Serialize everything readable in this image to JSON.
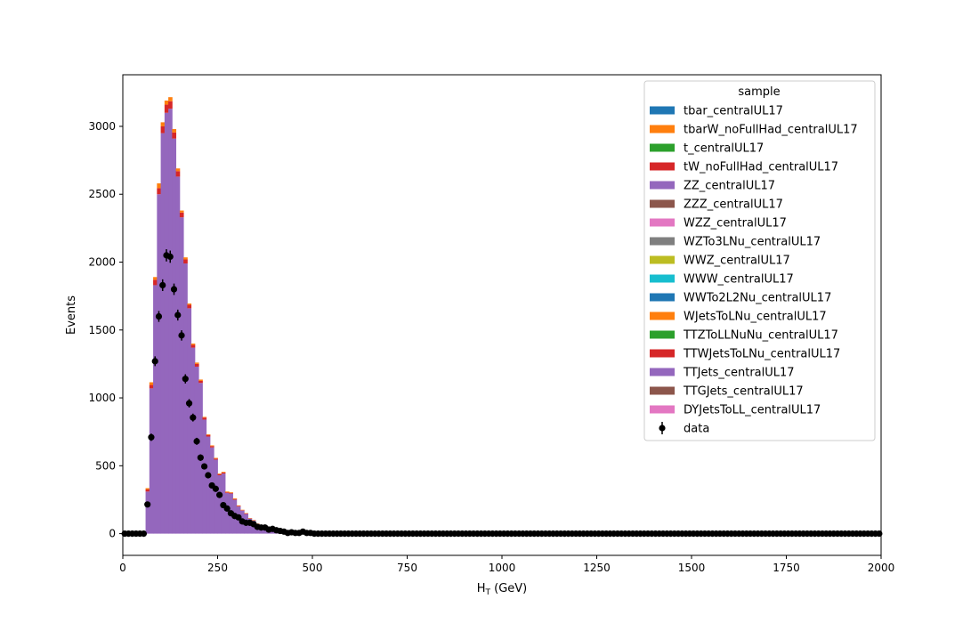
{
  "chart_data": {
    "type": "bar",
    "stacked": true,
    "xlabel_main": "H",
    "xlabel_sub": "T",
    "xlabel_unit": " (GeV)",
    "ylabel": "Events",
    "xlim": [
      0,
      2000
    ],
    "ylim": [
      -160,
      3380
    ],
    "bin_width": 10,
    "x_ticks": [
      0,
      250,
      500,
      750,
      1000,
      1250,
      1500,
      1750,
      2000
    ],
    "y_ticks": [
      0,
      500,
      1000,
      1500,
      2000,
      2500,
      3000
    ],
    "legend": {
      "title": "sample",
      "placement": "upper right",
      "entries": [
        {
          "name": "tbar_centralUL17",
          "color": "#1f77b4"
        },
        {
          "name": "tbarW_noFullHad_centralUL17",
          "color": "#ff7f0e"
        },
        {
          "name": "t_centralUL17",
          "color": "#2ca02c"
        },
        {
          "name": "tW_noFullHad_centralUL17",
          "color": "#d62728"
        },
        {
          "name": "ZZ_centralUL17",
          "color": "#9467bd"
        },
        {
          "name": "ZZZ_centralUL17",
          "color": "#8c564b"
        },
        {
          "name": "WZZ_centralUL17",
          "color": "#e377c2"
        },
        {
          "name": "WZTo3LNu_centralUL17",
          "color": "#7f7f7f"
        },
        {
          "name": "WWZ_centralUL17",
          "color": "#bcbd22"
        },
        {
          "name": "WWW_centralUL17",
          "color": "#17becf"
        },
        {
          "name": "WWTo2L2Nu_centralUL17",
          "color": "#1f77b4"
        },
        {
          "name": "WJetsToLNu_centralUL17",
          "color": "#ff7f0e"
        },
        {
          "name": "TTZToLLNuNu_centralUL17",
          "color": "#2ca02c"
        },
        {
          "name": "TTWJetsToLNu_centralUL17",
          "color": "#d62728"
        },
        {
          "name": "TTJets_centralUL17",
          "color": "#9467bd"
        },
        {
          "name": "TTGJets_centralUL17",
          "color": "#8c564b"
        },
        {
          "name": "DYJetsToLL_centralUL17",
          "color": "#e377c2"
        }
      ],
      "data_label": "data"
    },
    "mc_bins": [
      {
        "x0": 60,
        "ttjets": 310,
        "red": 15,
        "orange": 10
      },
      {
        "x0": 70,
        "ttjets": 1070,
        "red": 25,
        "orange": 20
      },
      {
        "x0": 80,
        "ttjets": 1830,
        "red": 40,
        "orange": 20
      },
      {
        "x0": 90,
        "ttjets": 2500,
        "red": 45,
        "orange": 35
      },
      {
        "x0": 100,
        "ttjets": 2950,
        "red": 50,
        "orange": 30
      },
      {
        "x0": 110,
        "ttjets": 3100,
        "red": 60,
        "orange": 30
      },
      {
        "x0": 120,
        "ttjets": 3130,
        "red": 55,
        "orange": 30
      },
      {
        "x0": 130,
        "ttjets": 2910,
        "red": 45,
        "orange": 25
      },
      {
        "x0": 140,
        "ttjets": 2630,
        "red": 40,
        "orange": 20
      },
      {
        "x0": 150,
        "ttjets": 2330,
        "red": 35,
        "orange": 15
      },
      {
        "x0": 160,
        "ttjets": 1990,
        "red": 30,
        "orange": 15
      },
      {
        "x0": 170,
        "ttjets": 1660,
        "red": 25,
        "orange": 10
      },
      {
        "x0": 180,
        "ttjets": 1370,
        "red": 20,
        "orange": 10
      },
      {
        "x0": 190,
        "ttjets": 1230,
        "red": 20,
        "orange": 10
      },
      {
        "x0": 200,
        "ttjets": 1110,
        "red": 15,
        "orange": 10
      },
      {
        "x0": 210,
        "ttjets": 840,
        "red": 15,
        "orange": 5
      },
      {
        "x0": 220,
        "ttjets": 715,
        "red": 12,
        "orange": 5
      },
      {
        "x0": 230,
        "ttjets": 635,
        "red": 10,
        "orange": 5
      },
      {
        "x0": 240,
        "ttjets": 545,
        "red": 8,
        "orange": 5
      },
      {
        "x0": 250,
        "ttjets": 430,
        "red": 8,
        "orange": 5
      },
      {
        "x0": 260,
        "ttjets": 442,
        "red": 8,
        "orange": 5
      },
      {
        "x0": 270,
        "ttjets": 300,
        "red": 5,
        "orange": 5
      },
      {
        "x0": 280,
        "ttjets": 295,
        "red": 5,
        "orange": 5
      },
      {
        "x0": 290,
        "ttjets": 250,
        "red": 5,
        "orange": 5
      },
      {
        "x0": 300,
        "ttjets": 200,
        "red": 5,
        "orange": 3
      },
      {
        "x0": 310,
        "ttjets": 170,
        "red": 3,
        "orange": 3
      },
      {
        "x0": 320,
        "ttjets": 145,
        "red": 3,
        "orange": 3
      },
      {
        "x0": 330,
        "ttjets": 110,
        "red": 3,
        "orange": 2
      },
      {
        "x0": 340,
        "ttjets": 95,
        "red": 3,
        "orange": 2
      },
      {
        "x0": 350,
        "ttjets": 70,
        "red": 2,
        "orange": 2
      },
      {
        "x0": 360,
        "ttjets": 58,
        "red": 2,
        "orange": 1
      },
      {
        "x0": 370,
        "ttjets": 48,
        "red": 1,
        "orange": 1
      },
      {
        "x0": 380,
        "ttjets": 38,
        "red": 1,
        "orange": 1
      },
      {
        "x0": 390,
        "ttjets": 30,
        "red": 1,
        "orange": 1
      },
      {
        "x0": 400,
        "ttjets": 24,
        "red": 1,
        "orange": 0
      },
      {
        "x0": 410,
        "ttjets": 18,
        "red": 0,
        "orange": 0
      },
      {
        "x0": 420,
        "ttjets": 14,
        "red": 0,
        "orange": 0
      },
      {
        "x0": 430,
        "ttjets": 11,
        "red": 0,
        "orange": 0
      },
      {
        "x0": 440,
        "ttjets": 9,
        "red": 0,
        "orange": 0
      },
      {
        "x0": 450,
        "ttjets": 7,
        "red": 0,
        "orange": 0
      },
      {
        "x0": 460,
        "ttjets": 6,
        "red": 0,
        "orange": 0
      },
      {
        "x0": 470,
        "ttjets": 5,
        "red": 0,
        "orange": 0
      },
      {
        "x0": 480,
        "ttjets": 4,
        "red": 0,
        "orange": 0
      },
      {
        "x0": 490,
        "ttjets": 3,
        "red": 0,
        "orange": 0
      },
      {
        "x0": 500,
        "ttjets": 2,
        "red": 0,
        "orange": 0
      }
    ],
    "data_points": {
      "x": [
        5,
        15,
        25,
        35,
        45,
        55,
        65,
        75,
        85,
        95,
        105,
        115,
        125,
        135,
        145,
        155,
        165,
        175,
        185,
        195,
        205,
        215,
        225,
        235,
        245,
        255,
        265,
        275,
        285,
        295,
        305,
        315,
        325,
        335,
        345,
        355,
        365,
        375,
        385,
        395,
        405,
        415,
        425,
        435,
        445,
        455,
        465,
        475,
        485,
        495
      ],
      "y": [
        0,
        0,
        0,
        0,
        0,
        0,
        215,
        710,
        1270,
        1600,
        1830,
        2050,
        2040,
        1800,
        1610,
        1460,
        1140,
        960,
        855,
        680,
        560,
        495,
        430,
        355,
        330,
        285,
        210,
        185,
        150,
        130,
        120,
        90,
        80,
        80,
        70,
        50,
        45,
        45,
        30,
        35,
        25,
        20,
        15,
        5,
        10,
        5,
        5,
        15,
        5,
        5
      ],
      "err": [
        0,
        0,
        0,
        0,
        0,
        0,
        15,
        27,
        36,
        40,
        43,
        45,
        45,
        42,
        40,
        38,
        34,
        31,
        29,
        26,
        24,
        22,
        21,
        19,
        18,
        17,
        15,
        14,
        12,
        11,
        11,
        10,
        9,
        9,
        8,
        7,
        7,
        7,
        5,
        6,
        5,
        4,
        4,
        2,
        3,
        2,
        2,
        4,
        2,
        2
      ]
    },
    "zero_data_step": 10
  }
}
